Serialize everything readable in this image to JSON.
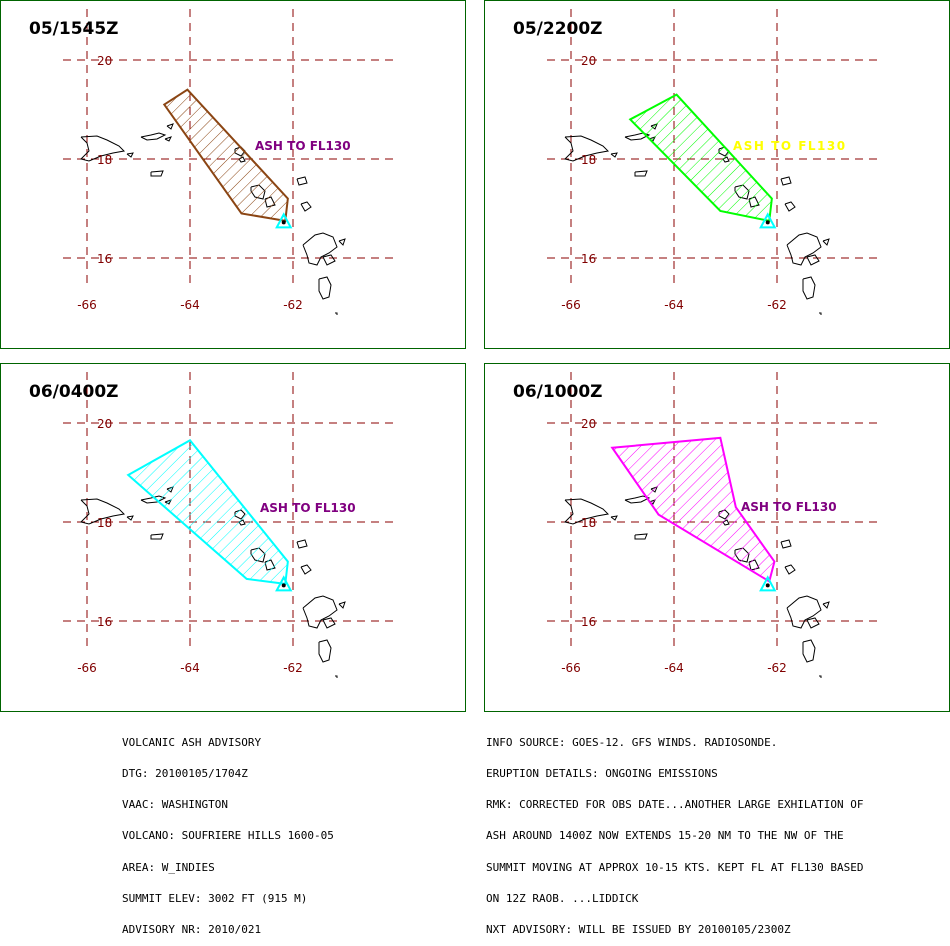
{
  "colors": {
    "panel_border": "#006400",
    "grid": "#8b0000",
    "axis_label": "#800000",
    "coast": "#000000",
    "volcano_marker": "#00ffff"
  },
  "panels": [
    {
      "title": "05/1545Z",
      "ash_label": "ASH TO FL130",
      "ash_label_color": "#800080",
      "polygon_color": "#8b4513",
      "polygon_lonlat": [
        [
          -64.5,
          19.1
        ],
        [
          -64.05,
          19.4
        ],
        [
          -62.1,
          17.2
        ],
        [
          -62.15,
          16.75
        ],
        [
          -63.0,
          16.9
        ]
      ]
    },
    {
      "title": "05/2200Z",
      "ash_label": "ASH TO FL130",
      "ash_label_color": "#ffff00",
      "polygon_color": "#00ff00",
      "polygon_lonlat": [
        [
          -64.85,
          18.8
        ],
        [
          -63.95,
          19.3
        ],
        [
          -62.1,
          17.2
        ],
        [
          -62.15,
          16.75
        ],
        [
          -63.1,
          16.95
        ]
      ]
    },
    {
      "title": "06/0400Z",
      "ash_label": "ASH TO FL130",
      "ash_label_color": "#800080",
      "polygon_color": "#00ffff",
      "polygon_lonlat": [
        [
          -65.2,
          18.95
        ],
        [
          -64.0,
          19.65
        ],
        [
          -62.1,
          17.2
        ],
        [
          -62.15,
          16.75
        ],
        [
          -62.9,
          16.85
        ]
      ]
    },
    {
      "title": "06/1000Z",
      "ash_label": "ASH TO FL130",
      "ash_label_color": "#800080",
      "polygon_color": "#ff00ff",
      "polygon_lonlat": [
        [
          -65.2,
          19.5
        ],
        [
          -63.1,
          19.7
        ],
        [
          -62.8,
          18.3
        ],
        [
          -62.05,
          17.2
        ],
        [
          -62.15,
          16.8
        ],
        [
          -64.3,
          18.15
        ]
      ]
    }
  ],
  "axes": {
    "lat_labels": [
      "20",
      "18",
      "16"
    ],
    "lon_labels": [
      "-66",
      "-64",
      "-62"
    ],
    "lat_values": [
      20,
      18,
      16
    ],
    "lon_values": [
      -66,
      -64,
      -62
    ],
    "volcano_lonlat": [
      -62.18,
      16.72
    ]
  },
  "advisory_left": [
    "VOLCANIC ASH ADVISORY",
    "DTG: 20100105/1704Z",
    "VAAC: WASHINGTON",
    "VOLCANO: SOUFRIERE HILLS 1600-05",
    "AREA: W_INDIES",
    "SUMMIT ELEV: 3002 FT (915 M)",
    "ADVISORY NR: 2010/021"
  ],
  "advisory_right": [
    "INFO SOURCE: GOES-12. GFS WINDS. RADIOSONDE.",
    "ERUPTION DETAILS: ONGOING EMISSIONS",
    "RMK: CORRECTED FOR OBS DATE...ANOTHER LARGE EXHILATION OF",
    "ASH AROUND 1400Z NOW EXTENDS 15-20 NM TO THE NW OF THE",
    "SUMMIT MOVING AT APPROX 10-15 KTS. KEPT FL AT FL130 BASED",
    "ON 12Z RAOB. ...LIDDICK",
    "NXT ADVISORY: WILL BE ISSUED BY 20100105/2300Z"
  ]
}
